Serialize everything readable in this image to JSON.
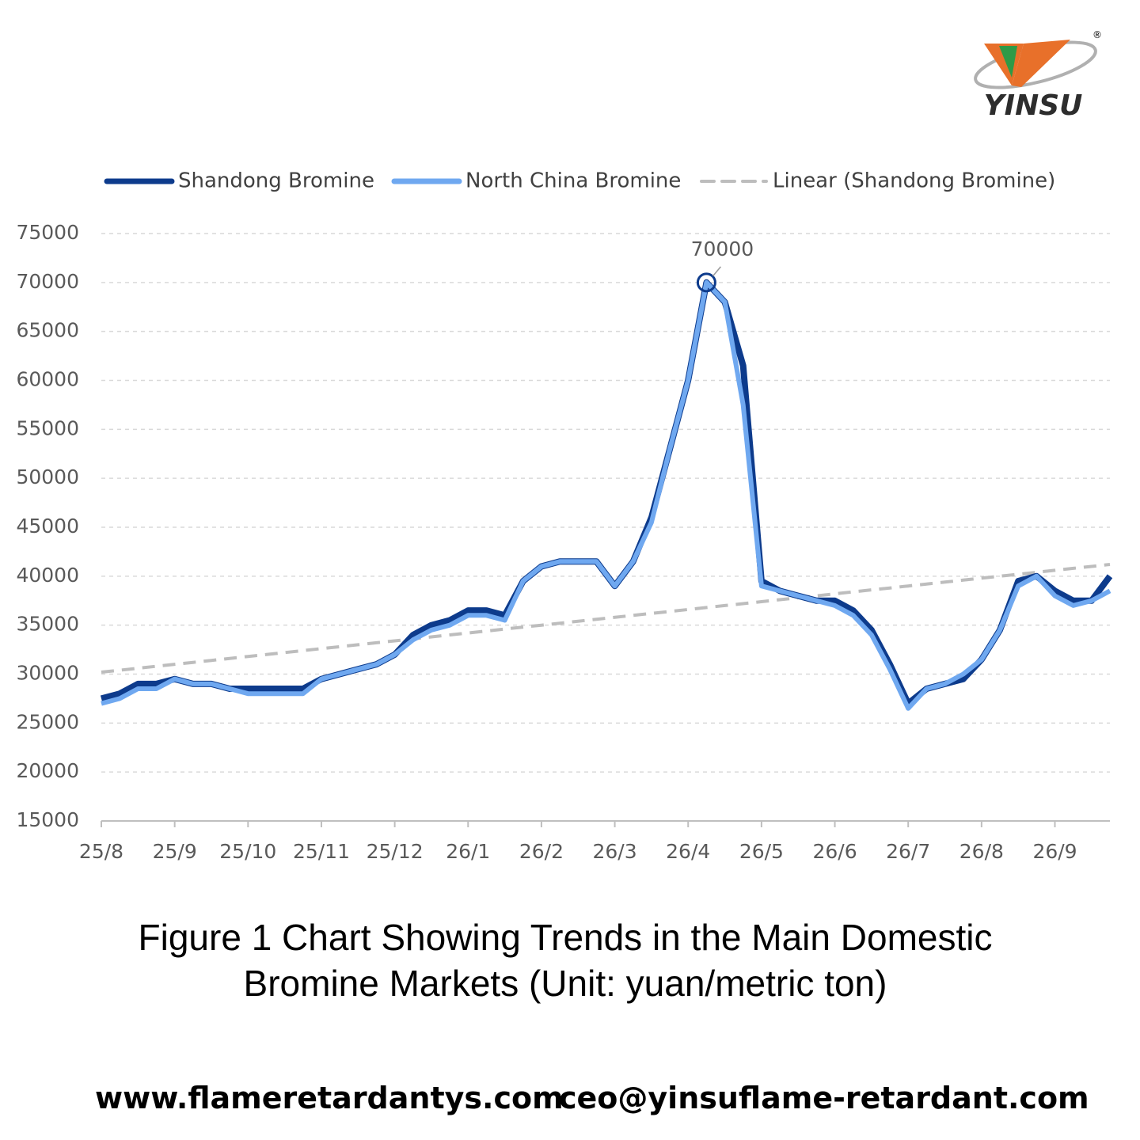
{
  "logo": "YINSU",
  "chart_data": {
    "type": "line",
    "categories": [
      "25/8",
      null,
      null,
      null,
      "25/9",
      null,
      null,
      null,
      "25/10",
      null,
      null,
      null,
      "25/11",
      null,
      null,
      null,
      "25/12",
      null,
      null,
      null,
      "26/1",
      null,
      null,
      null,
      "26/2",
      null,
      null,
      null,
      "26/3",
      null,
      null,
      null,
      "26/4",
      null,
      null,
      null,
      "26/5",
      null,
      null,
      null,
      "26/6",
      null,
      null,
      null,
      "26/7",
      null,
      null,
      null,
      "26/8",
      null,
      null,
      null,
      "26/9",
      null,
      null,
      null
    ],
    "series": [
      {
        "name": "Shandong Bromine",
        "color": "#0d3b8c",
        "style": "solid",
        "values": [
          27500,
          28000,
          29000,
          29000,
          29500,
          29000,
          29000,
          28500,
          28500,
          28500,
          28500,
          28500,
          29500,
          30000,
          30500,
          31000,
          32000,
          34000,
          35000,
          35500,
          36500,
          36500,
          36000,
          39500,
          41000,
          41500,
          41500,
          41500,
          39000,
          41500,
          46000,
          53000,
          60000,
          70000,
          68000,
          61500,
          39500,
          38500,
          38000,
          37500,
          37500,
          36500,
          34500,
          31000,
          27000,
          28500,
          29000,
          29500,
          31500,
          34500,
          39500,
          40000,
          38500,
          37500,
          37500,
          40000
        ]
      },
      {
        "name": "North China Bromine",
        "color": "#6fa8f0",
        "style": "solid",
        "values": [
          27000,
          27500,
          28500,
          28500,
          29500,
          29000,
          29000,
          28500,
          28000,
          28000,
          28000,
          28000,
          29500,
          30000,
          30500,
          31000,
          32000,
          33500,
          34500,
          35000,
          36000,
          36000,
          35500,
          39500,
          41000,
          41500,
          41500,
          41500,
          39000,
          41500,
          45500,
          53000,
          60000,
          70000,
          68000,
          57500,
          39000,
          38500,
          38000,
          37500,
          37000,
          36000,
          34000,
          30500,
          26500,
          28500,
          29000,
          30000,
          31500,
          34500,
          39000,
          40000,
          38000,
          37000,
          37500,
          38500
        ]
      },
      {
        "name": "Linear (Shandong Bromine)",
        "color": "#bdbdbd",
        "style": "dashed",
        "values": [
          30200,
          30400,
          30600,
          30800,
          31000,
          31200,
          31400,
          31600,
          31800,
          32000,
          32200,
          32400,
          32600,
          32800,
          33000,
          33200,
          33400,
          33600,
          33800,
          34000,
          34200,
          34400,
          34600,
          34800,
          35000,
          35200,
          35400,
          35600,
          35800,
          36000,
          36200,
          36400,
          36600,
          36800,
          37000,
          37200,
          37400,
          37600,
          37800,
          38000,
          38200,
          38400,
          38600,
          38800,
          39000,
          39200,
          39400,
          39600,
          39800,
          40000,
          40200,
          40400,
          40600,
          40800,
          41000,
          41200
        ]
      }
    ],
    "ylim": [
      15000,
      75000
    ],
    "yticks": [
      15000,
      20000,
      25000,
      30000,
      35000,
      40000,
      45000,
      50000,
      55000,
      60000,
      65000,
      70000,
      75000
    ],
    "grid": true,
    "legend": "top"
  },
  "caption": [
    "Figure 1  Chart Showing Trends in the Main Domestic",
    "Bromine Markets (Unit: yuan/metric ton)"
  ],
  "footer": {
    "website": "www.flameretardantys.com",
    "email": "ceo@yinsuflame-retardant.com"
  }
}
